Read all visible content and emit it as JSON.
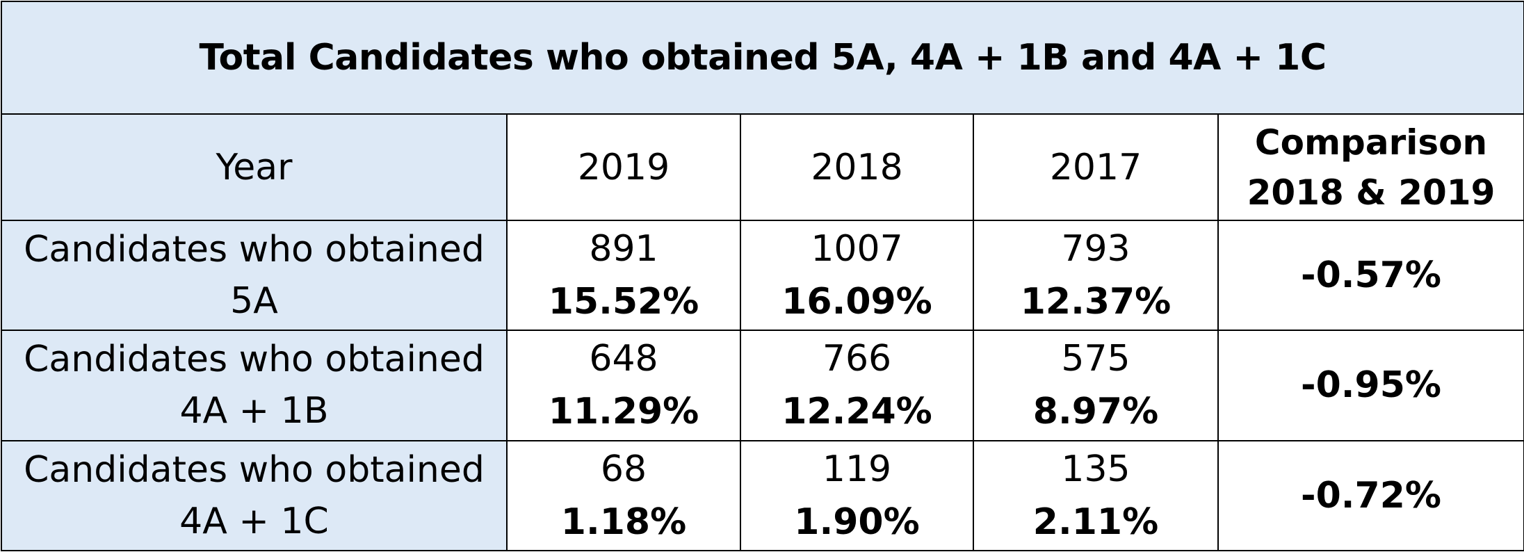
{
  "title": "Total Candidates who obtained 5A, 4A + 1B and 4A + 1C",
  "header": {
    "year_label": "Year",
    "years": [
      "2019",
      "2018",
      "2017"
    ],
    "comparison_line1": "Comparison",
    "comparison_line2": "2018 & 2019"
  },
  "rows": [
    {
      "label_line1": "Candidates who obtained",
      "label_line2": "5A",
      "values": [
        {
          "count": "891",
          "pct": "15.52%"
        },
        {
          "count": "1007",
          "pct": "16.09%"
        },
        {
          "count": "793",
          "pct": "12.37%"
        }
      ],
      "comparison": "-0.57%"
    },
    {
      "label_line1": "Candidates who obtained",
      "label_line2": "4A + 1B",
      "values": [
        {
          "count": "648",
          "pct": "11.29%"
        },
        {
          "count": "766",
          "pct": "12.24%"
        },
        {
          "count": "575",
          "pct": "8.97%"
        }
      ],
      "comparison": "-0.95%"
    },
    {
      "label_line1": "Candidates who obtained",
      "label_line2": "4A + 1C",
      "values": [
        {
          "count": "68",
          "pct": "1.18%"
        },
        {
          "count": "119",
          "pct": "1.90%"
        },
        {
          "count": "135",
          "pct": "2.11%"
        }
      ],
      "comparison": "-0.72%"
    }
  ],
  "colors": {
    "header_fill": "#dde9f6",
    "border": "#000000"
  }
}
